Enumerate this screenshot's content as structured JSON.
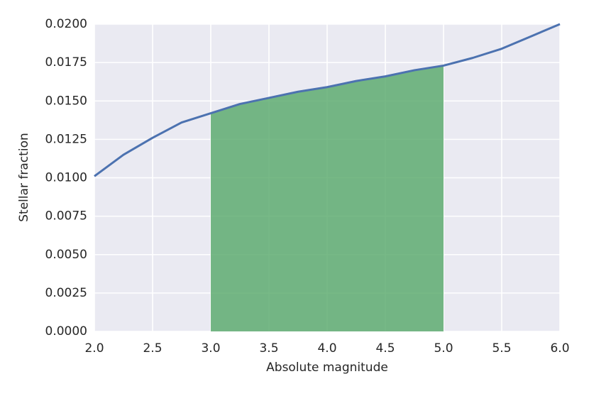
{
  "chart_data": {
    "type": "line",
    "x_label": "Absolute magnitude",
    "y_label": "Stellar fraction",
    "x": [
      2.0,
      2.25,
      2.5,
      2.75,
      3.0,
      3.25,
      3.5,
      3.75,
      4.0,
      4.25,
      4.5,
      4.75,
      5.0,
      5.25,
      5.5,
      5.75,
      6.0
    ],
    "values": [
      0.0101,
      0.0115,
      0.0126,
      0.0136,
      0.0142,
      0.0148,
      0.0152,
      0.0156,
      0.0159,
      0.0163,
      0.0166,
      0.017,
      0.0173,
      0.0178,
      0.0184,
      0.0192,
      0.02
    ],
    "color": "#4c72b0",
    "fill_xlim": [
      3.0,
      5.0
    ],
    "fill_color": "#55a868",
    "xlim": [
      2.0,
      6.0
    ],
    "xticks": [
      {
        "value": 2,
        "label": "2.0"
      },
      {
        "value": 2.5,
        "label": "2.5"
      },
      {
        "value": 3,
        "label": "3.0"
      },
      {
        "value": 3.5,
        "label": "3.5"
      },
      {
        "value": 4,
        "label": "4.0"
      },
      {
        "value": 4.5,
        "label": "4.5"
      },
      {
        "value": 5,
        "label": "5.0"
      },
      {
        "value": 5.5,
        "label": "5.5"
      },
      {
        "value": 6,
        "label": "6.0"
      }
    ],
    "ylim": [
      0,
      0.02
    ],
    "yticks": [
      {
        "value": 0,
        "label": "0.0000"
      },
      {
        "value": 0.0025,
        "label": "0.0025"
      },
      {
        "value": 0.005,
        "label": "0.0050"
      },
      {
        "value": 0.0075,
        "label": "0.0075"
      },
      {
        "value": 0.01,
        "label": "0.0100"
      },
      {
        "value": 0.0125,
        "label": "0.0125"
      },
      {
        "value": 0.015,
        "label": "0.0150"
      },
      {
        "value": 0.0175,
        "label": "0.0175"
      },
      {
        "value": 0.02,
        "label": "0.0200"
      }
    ],
    "grid": true
  }
}
